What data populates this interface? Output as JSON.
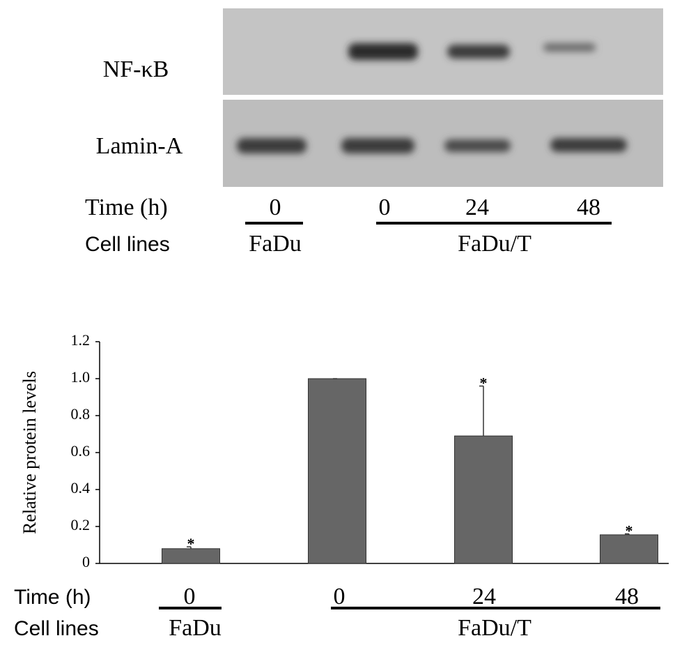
{
  "blot": {
    "rows": [
      "NF-κB",
      "Lamin-A"
    ],
    "row_labels": [
      "Time (h)",
      "Cell lines"
    ],
    "times": [
      "0",
      "0",
      "24",
      "48"
    ],
    "groups": [
      "FaDu",
      "FaDu/T"
    ]
  },
  "chart_data": {
    "type": "bar",
    "y_label": "Relative protein levels",
    "categories": [
      "0",
      "0",
      "24",
      "48"
    ],
    "values": [
      0.08,
      1.0,
      0.69,
      0.155
    ],
    "errors": [
      0.01,
      0,
      0.27,
      0.005
    ],
    "annotations": [
      "*",
      null,
      "*",
      "*"
    ],
    "color": "#666666",
    "row_labels": [
      "Time (h)",
      "Cell lines"
    ],
    "groups": [
      "FaDu",
      "FaDu/T"
    ],
    "ylim": [
      0,
      1.2
    ],
    "yticks": [
      0,
      0.2,
      0.4,
      0.6,
      0.8,
      {
        "value": 1,
        "label": "1.0"
      },
      1.2
    ]
  }
}
